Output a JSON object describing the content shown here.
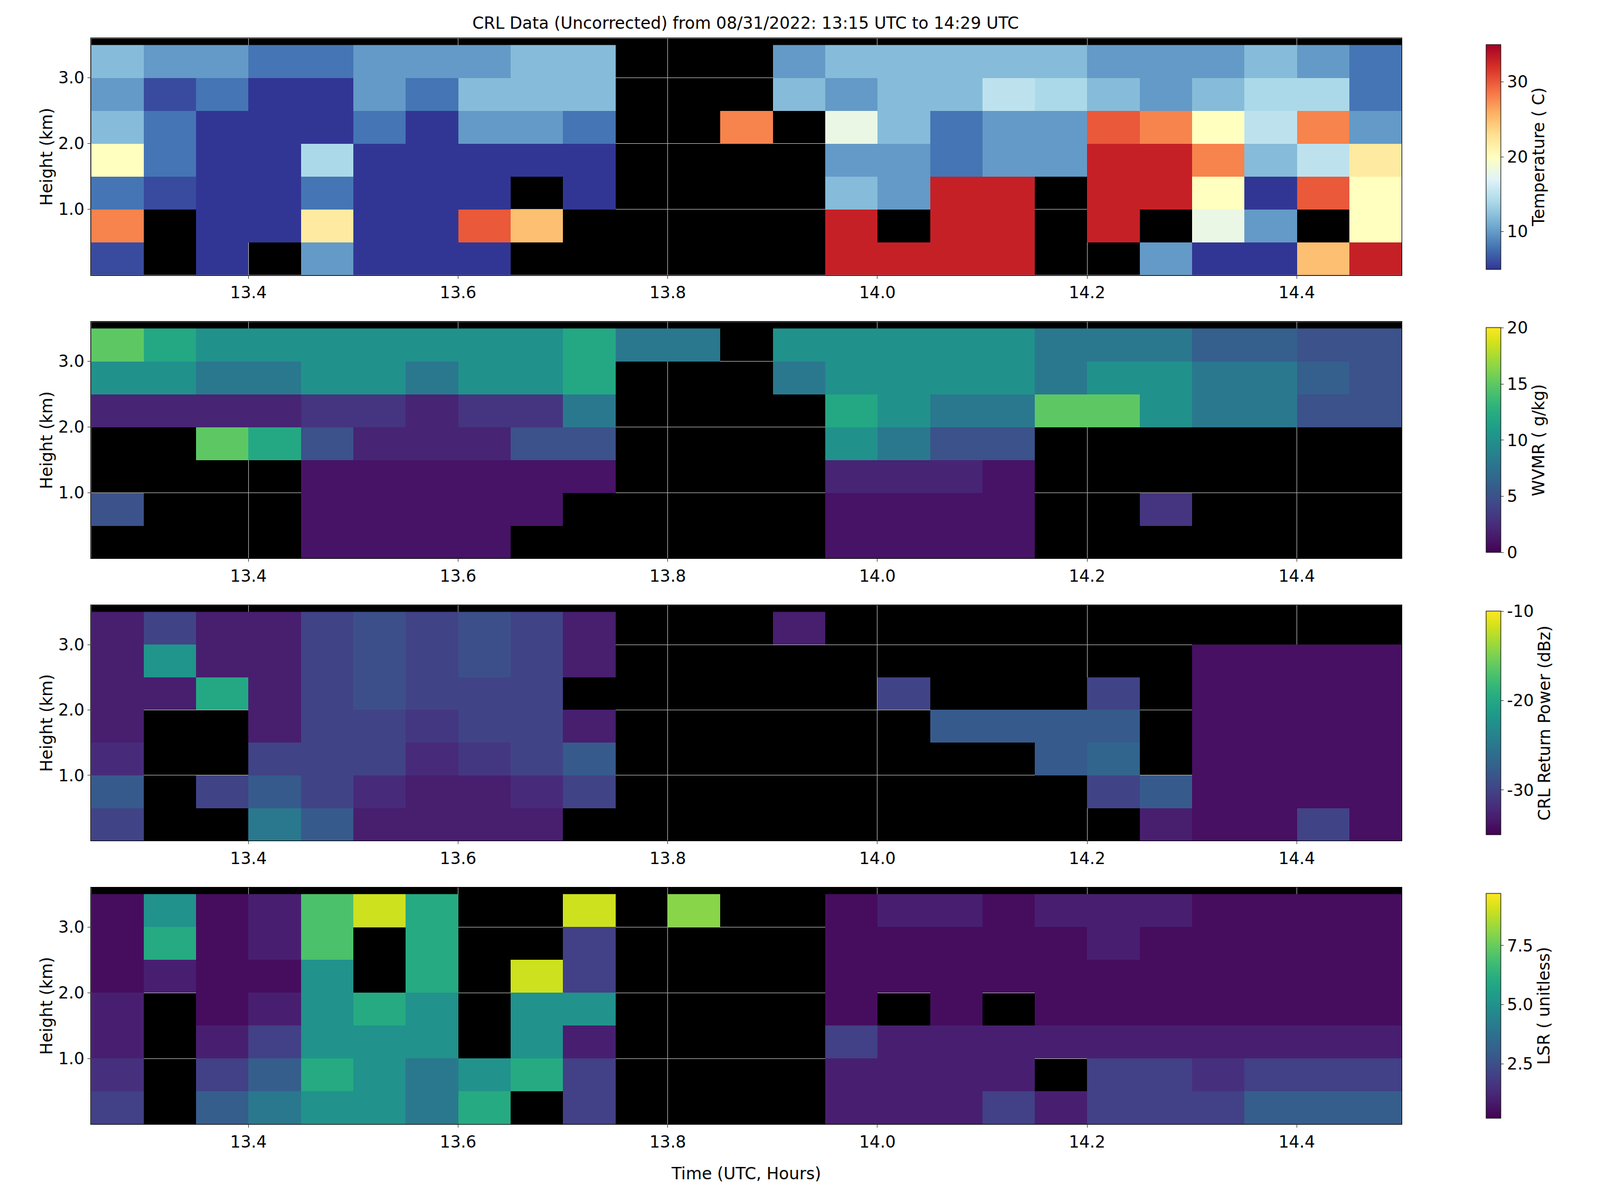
{
  "chart_data": [
    {
      "type": "heatmap",
      "title": "CRL Data (Uncorrected) from 08/31/2022: 13:15 UTC to 14:29 UTC",
      "y_label": "Height (km)",
      "colorbar_title": "Temperature ( C)",
      "color": "RdYlBu_r",
      "grid": true,
      "xlim": [
        13.25,
        14.5
      ],
      "ylim": [
        0,
        3.6
      ],
      "xticks": [
        13.4,
        13.6,
        13.8,
        {
          "value": 14,
          "label": "14.0"
        },
        14.2,
        14.4
      ],
      "yticks": [
        {
          "value": 1,
          "label": "1.0"
        },
        {
          "value": 2,
          "label": "2.0"
        },
        {
          "value": 3,
          "label": "3.0"
        }
      ],
      "zlim": [
        5,
        35
      ],
      "zticks": [
        10,
        20,
        30
      ],
      "x": [
        13.275,
        13.325,
        13.375,
        13.425,
        13.475,
        13.525,
        13.575,
        13.625,
        13.675,
        13.725,
        13.775,
        13.825,
        13.875,
        13.925,
        13.975,
        14.025,
        14.075,
        14.125,
        14.175,
        14.225,
        14.275,
        14.325,
        14.375,
        14.425,
        14.475
      ],
      "y": [
        0.25,
        0.75,
        1.25,
        1.75,
        2.25,
        2.75,
        3.25
      ],
      "cells": [
        [
          6,
          28,
          8,
          20,
          12,
          10,
          12
        ],
        [
          null,
          null,
          6,
          8,
          8,
          6,
          10
        ],
        [
          5,
          5,
          5,
          5,
          5,
          8,
          10
        ],
        [
          null,
          5,
          5,
          5,
          5,
          5,
          8
        ],
        [
          10,
          22,
          8,
          14,
          5,
          5,
          8
        ],
        [
          5,
          5,
          5,
          5,
          8,
          10,
          10
        ],
        [
          5,
          5,
          5,
          5,
          5,
          8,
          10
        ],
        [
          5,
          30,
          5,
          5,
          10,
          12,
          10
        ],
        [
          null,
          25,
          null,
          5,
          10,
          12,
          12
        ],
        [
          null,
          null,
          5,
          5,
          8,
          12,
          12
        ],
        [
          null,
          null,
          null,
          null,
          null,
          null,
          null
        ],
        [
          null,
          null,
          null,
          null,
          null,
          null,
          null
        ],
        [
          null,
          null,
          null,
          null,
          28,
          null,
          null
        ],
        [
          null,
          null,
          null,
          null,
          null,
          12,
          10
        ],
        [
          33,
          33,
          12,
          10,
          18,
          10,
          12
        ],
        [
          33,
          null,
          10,
          10,
          12,
          12,
          12
        ],
        [
          33,
          33,
          33,
          8,
          8,
          12,
          12
        ],
        [
          33,
          33,
          33,
          10,
          10,
          15,
          12
        ],
        [
          null,
          null,
          null,
          10,
          10,
          14,
          12
        ],
        [
          null,
          33,
          33,
          33,
          30,
          12,
          10
        ],
        [
          10,
          null,
          33,
          33,
          28,
          10,
          10
        ],
        [
          5,
          18,
          20,
          28,
          20,
          12,
          10
        ],
        [
          5,
          10,
          5,
          12,
          15,
          14,
          12
        ],
        [
          25,
          null,
          30,
          15,
          28,
          14,
          10
        ],
        [
          33,
          20,
          20,
          22,
          10,
          8,
          8
        ]
      ]
    },
    {
      "type": "heatmap",
      "y_label": "Height (km)",
      "colorbar_title": "WVMR ( g/kg)",
      "color": "viridis",
      "grid": true,
      "xlim": [
        13.25,
        14.5
      ],
      "ylim": [
        0,
        3.6
      ],
      "xticks": [
        13.4,
        13.6,
        13.8,
        {
          "value": 14,
          "label": "14.0"
        },
        14.2,
        14.4
      ],
      "yticks": [
        {
          "value": 1,
          "label": "1.0"
        },
        {
          "value": 2,
          "label": "2.0"
        },
        {
          "value": 3,
          "label": "3.0"
        }
      ],
      "zlim": [
        0,
        20
      ],
      "zticks": [
        0,
        5,
        10,
        15,
        20
      ],
      "x": [
        13.275,
        13.325,
        13.375,
        13.425,
        13.475,
        13.525,
        13.575,
        13.625,
        13.675,
        13.725,
        13.775,
        13.825,
        13.875,
        13.925,
        13.975,
        14.025,
        14.075,
        14.125,
        14.175,
        14.225,
        14.275,
        14.325,
        14.375,
        14.425,
        14.475
      ],
      "y": [
        0.25,
        0.75,
        1.25,
        1.75,
        2.25,
        2.75,
        3.25
      ],
      "cells": [
        [
          null,
          5,
          null,
          null,
          2,
          10,
          15
        ],
        [
          null,
          null,
          null,
          null,
          2,
          10,
          12
        ],
        [
          null,
          null,
          null,
          15,
          2,
          8,
          10
        ],
        [
          null,
          null,
          null,
          12,
          2,
          8,
          10
        ],
        [
          1,
          1,
          1,
          5,
          3,
          10,
          10
        ],
        [
          1,
          1,
          1,
          2,
          3,
          10,
          10
        ],
        [
          1,
          1,
          1,
          2,
          2,
          8,
          10
        ],
        [
          1,
          1,
          1,
          2,
          3,
          10,
          10
        ],
        [
          null,
          1,
          1,
          5,
          3,
          10,
          10
        ],
        [
          null,
          null,
          1,
          5,
          8,
          12,
          12
        ],
        [
          null,
          null,
          null,
          null,
          null,
          null,
          8
        ],
        [
          null,
          null,
          null,
          null,
          null,
          null,
          8
        ],
        [
          null,
          null,
          null,
          null,
          null,
          null,
          null
        ],
        [
          null,
          null,
          null,
          null,
          null,
          8,
          10
        ],
        [
          1,
          1,
          2,
          10,
          12,
          10,
          10
        ],
        [
          1,
          1,
          2,
          8,
          10,
          10,
          10
        ],
        [
          1,
          1,
          2,
          5,
          8,
          10,
          10
        ],
        [
          1,
          1,
          1,
          5,
          8,
          10,
          10
        ],
        [
          null,
          null,
          null,
          null,
          15,
          8,
          8
        ],
        [
          null,
          null,
          null,
          null,
          15,
          10,
          8
        ],
        [
          null,
          3,
          null,
          null,
          10,
          10,
          8
        ],
        [
          null,
          null,
          null,
          null,
          8,
          8,
          6
        ],
        [
          null,
          null,
          null,
          null,
          8,
          8,
          6
        ],
        [
          null,
          null,
          null,
          null,
          5,
          6,
          5
        ],
        [
          null,
          null,
          null,
          null,
          5,
          5,
          5
        ]
      ]
    },
    {
      "type": "heatmap",
      "y_label": "Height (km)",
      "colorbar_title": "CRL Return Power (dBz)",
      "color": "viridis",
      "grid": true,
      "xlim": [
        13.25,
        14.5
      ],
      "ylim": [
        0,
        3.6
      ],
      "xticks": [
        13.4,
        13.6,
        13.8,
        {
          "value": 14,
          "label": "14.0"
        },
        14.2,
        14.4
      ],
      "yticks": [
        {
          "value": 1,
          "label": "1.0"
        },
        {
          "value": 2,
          "label": "2.0"
        },
        {
          "value": 3,
          "label": "3.0"
        }
      ],
      "zlim": [
        -35,
        -10
      ],
      "zticks": [
        -30,
        -20,
        -10
      ],
      "x": [
        13.275,
        13.325,
        13.375,
        13.425,
        13.475,
        13.525,
        13.575,
        13.625,
        13.675,
        13.725,
        13.775,
        13.825,
        13.875,
        13.925,
        13.975,
        14.025,
        14.075,
        14.125,
        14.175,
        14.225,
        14.275,
        14.325,
        14.375,
        14.425,
        14.475
      ],
      "y": [
        0.25,
        0.75,
        1.25,
        1.75,
        2.25,
        2.75,
        3.25
      ],
      "cells": [
        [
          -30,
          -28,
          -32,
          -33,
          -33,
          -33,
          -33
        ],
        [
          null,
          null,
          null,
          null,
          -33,
          -22,
          -30
        ],
        [
          null,
          -30,
          null,
          null,
          -20,
          -33,
          -33
        ],
        [
          -25,
          -28,
          -30,
          -33,
          -33,
          -33,
          -33
        ],
        [
          -28,
          -30,
          -30,
          -30,
          -30,
          -30,
          -30
        ],
        [
          -33,
          -32,
          -30,
          -30,
          -29,
          -29,
          -29
        ],
        [
          -33,
          -33,
          -32,
          -31,
          -30,
          -30,
          -30
        ],
        [
          -33,
          -33,
          -31,
          -30,
          -30,
          -29,
          -29
        ],
        [
          -33,
          -32,
          -30,
          -30,
          -30,
          -30,
          -30
        ],
        [
          null,
          -30,
          -28,
          -33,
          null,
          -33,
          -33
        ],
        [
          null,
          null,
          null,
          null,
          null,
          null,
          null
        ],
        [
          null,
          null,
          null,
          null,
          null,
          null,
          null
        ],
        [
          null,
          null,
          null,
          null,
          null,
          null,
          null
        ],
        [
          null,
          null,
          null,
          null,
          null,
          null,
          -33
        ],
        [
          null,
          null,
          null,
          null,
          null,
          null,
          null
        ],
        [
          null,
          null,
          null,
          null,
          -30,
          null,
          null
        ],
        [
          null,
          null,
          null,
          -28,
          null,
          null,
          null
        ],
        [
          null,
          null,
          null,
          -28,
          null,
          null,
          null
        ],
        [
          null,
          null,
          -28,
          -28,
          null,
          null,
          null
        ],
        [
          null,
          -30,
          -27,
          -28,
          -30,
          null,
          null
        ],
        [
          -33,
          -28,
          null,
          null,
          null,
          null,
          null
        ],
        [
          -34,
          -34,
          -34,
          -34,
          -34,
          -34,
          null
        ],
        [
          -34,
          -34,
          -34,
          -34,
          -34,
          -34,
          null
        ],
        [
          -30,
          -34,
          -34,
          -34,
          -34,
          -34,
          null
        ],
        [
          -34,
          -34,
          -34,
          -34,
          -34,
          -34,
          null
        ]
      ]
    },
    {
      "type": "heatmap",
      "x_label": "Time (UTC, Hours)",
      "y_label": "Height (km)",
      "colorbar_title": "LSR ( unitless)",
      "color": "viridis",
      "grid": true,
      "xlim": [
        13.25,
        14.5
      ],
      "ylim": [
        0,
        3.6
      ],
      "xticks": [
        13.4,
        13.6,
        13.8,
        {
          "value": 14,
          "label": "14.0"
        },
        14.2,
        14.4
      ],
      "yticks": [
        {
          "value": 1,
          "label": "1.0"
        },
        {
          "value": 2,
          "label": "2.0"
        },
        {
          "value": 3,
          "label": "3.0"
        }
      ],
      "zlim": [
        0.2,
        9.7
      ],
      "zticks": [
        2.5,
        {
          "value": 5,
          "label": "5.0"
        },
        7.5
      ],
      "x": [
        13.275,
        13.325,
        13.375,
        13.425,
        13.475,
        13.525,
        13.575,
        13.625,
        13.675,
        13.725,
        13.775,
        13.825,
        13.875,
        13.925,
        13.975,
        14.025,
        14.075,
        14.125,
        14.175,
        14.225,
        14.275,
        14.325,
        14.375,
        14.425,
        14.475
      ],
      "y": [
        0.25,
        0.75,
        1.25,
        1.75,
        2.25,
        2.75,
        3.25
      ],
      "cells": [
        [
          2,
          1.5,
          1,
          1,
          0.5,
          0.5,
          0.5
        ],
        [
          null,
          null,
          null,
          null,
          1,
          6,
          5
        ],
        [
          3,
          2,
          1,
          0.5,
          0.5,
          0.5,
          0.5
        ],
        [
          4,
          3,
          2,
          1,
          0.5,
          1,
          1
        ],
        [
          5,
          6,
          5,
          5,
          5,
          7,
          7
        ],
        [
          5,
          5,
          5,
          6,
          null,
          null,
          9
        ],
        [
          4,
          4,
          5,
          5,
          6,
          6,
          6
        ],
        [
          6,
          5,
          null,
          null,
          null,
          null,
          null
        ],
        [
          null,
          6,
          5,
          5,
          9,
          null,
          null
        ],
        [
          2,
          2,
          1,
          5,
          2,
          2,
          9
        ],
        [
          null,
          null,
          null,
          null,
          null,
          null,
          null
        ],
        [
          null,
          null,
          null,
          null,
          null,
          null,
          8
        ],
        [
          null,
          null,
          null,
          null,
          null,
          null,
          null
        ],
        [
          null,
          null,
          null,
          null,
          null,
          null,
          null
        ],
        [
          1,
          1,
          2,
          0.5,
          0.5,
          0.5,
          0.5
        ],
        [
          1,
          1,
          1,
          null,
          0.5,
          0.5,
          1
        ],
        [
          1,
          1,
          1,
          0.5,
          0.5,
          0.5,
          1
        ],
        [
          2,
          1,
          1,
          null,
          0.5,
          0.5,
          0.5
        ],
        [
          1,
          null,
          1,
          0.5,
          0.5,
          0.5,
          1
        ],
        [
          2,
          2,
          1,
          0.5,
          0.5,
          1,
          1
        ],
        [
          2,
          2,
          1,
          0.5,
          0.5,
          0.5,
          1
        ],
        [
          2,
          1.5,
          1,
          0.5,
          0.5,
          0.5,
          0.5
        ],
        [
          3,
          2,
          1,
          0.5,
          0.5,
          0.5,
          0.5
        ],
        [
          3,
          2,
          1,
          0.5,
          0.5,
          0.5,
          0.5
        ],
        [
          3,
          2,
          1,
          0.5,
          0.5,
          0.5,
          0.5
        ]
      ]
    }
  ]
}
